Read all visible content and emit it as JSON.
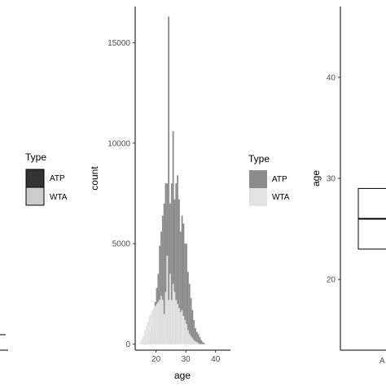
{
  "colors": {
    "atp_dark": "#333333",
    "wta_light_outlined": "#cccccc",
    "atp_hist": "#8c8c8c",
    "wta_hist": "#e3e3e3",
    "axis": "#000000",
    "tick_text": "#4d4d4d"
  },
  "chart_data": [
    {
      "type": "bar",
      "panel": "left",
      "legend": {
        "title": "Type",
        "entries": [
          {
            "label": "ATP",
            "color": "#333333"
          },
          {
            "label": "WTA",
            "color": "#cccccc"
          }
        ]
      },
      "legend_placement": "right",
      "grid": false
    },
    {
      "type": "bar",
      "panel": "middle",
      "xlabel": "age",
      "ylabel": "count",
      "xlim": [
        13,
        45
      ],
      "ylim": [
        -300,
        16800
      ],
      "x_ticks": [
        "20",
        "30",
        "40"
      ],
      "y_ticks": [
        "0",
        "5000",
        "10000",
        "15000"
      ],
      "grid": false,
      "bin_width": 0.5,
      "series": [
        {
          "name": "ATP",
          "x": [
            16,
            16.5,
            17,
            17.5,
            18,
            18.5,
            19,
            19.5,
            20,
            20.5,
            21,
            21.5,
            22,
            22.5,
            23,
            23.5,
            24,
            24.5,
            25,
            25.5,
            26,
            26.5,
            27,
            27.5,
            28,
            28.5,
            29,
            29.5,
            30,
            30.5,
            31,
            31.5,
            32,
            32.5,
            33,
            33.5,
            34,
            34.5,
            35,
            35.5,
            36
          ],
          "values": [
            0,
            50,
            150,
            300,
            600,
            900,
            1500,
            2100,
            2800,
            3500,
            4900,
            5600,
            6400,
            7000,
            8000,
            8000,
            16300,
            7000,
            8000,
            10600,
            7200,
            8000,
            8400,
            7200,
            5600,
            6400,
            6000,
            5000,
            5000,
            3600,
            3000,
            2300,
            1700,
            1200,
            800,
            600,
            500,
            350,
            200,
            100,
            50
          ]
        },
        {
          "name": "WTA",
          "x": [
            14.5,
            15,
            15.5,
            16,
            16.5,
            17,
            17.5,
            18,
            18.5,
            19,
            19.5,
            20,
            20.5,
            21,
            21.5,
            22,
            22.5,
            23,
            23.5,
            24,
            24.5,
            25,
            25.5,
            26,
            26.5,
            27,
            27.5,
            28,
            28.5,
            29,
            29.5,
            30,
            30.5,
            31,
            31.5,
            32,
            32.5,
            33,
            33.5,
            34
          ],
          "values": [
            100,
            250,
            400,
            700,
            900,
            1100,
            1400,
            1500,
            1700,
            1800,
            1900,
            2000,
            2100,
            2200,
            2400,
            2200,
            1500,
            2600,
            4400,
            2200,
            3500,
            2200,
            3000,
            2600,
            2200,
            2000,
            1800,
            1600,
            1700,
            1400,
            1200,
            1000,
            700,
            500,
            400,
            300,
            200,
            150,
            100,
            50
          ]
        }
      ],
      "legend": {
        "title": "Type",
        "entries": [
          {
            "label": "ATP",
            "color": "#8c8c8c"
          },
          {
            "label": "WTA",
            "color": "#e3e3e3"
          }
        ]
      },
      "legend_placement": "right"
    },
    {
      "type": "box",
      "panel": "right",
      "ylabel": "age",
      "ylim": [
        13,
        47
      ],
      "y_ticks": [
        "20",
        "30",
        "40"
      ],
      "x_tick_partial": "A",
      "grid": false,
      "box": {
        "q1": 23,
        "median": 26,
        "q3": 29
      }
    }
  ]
}
